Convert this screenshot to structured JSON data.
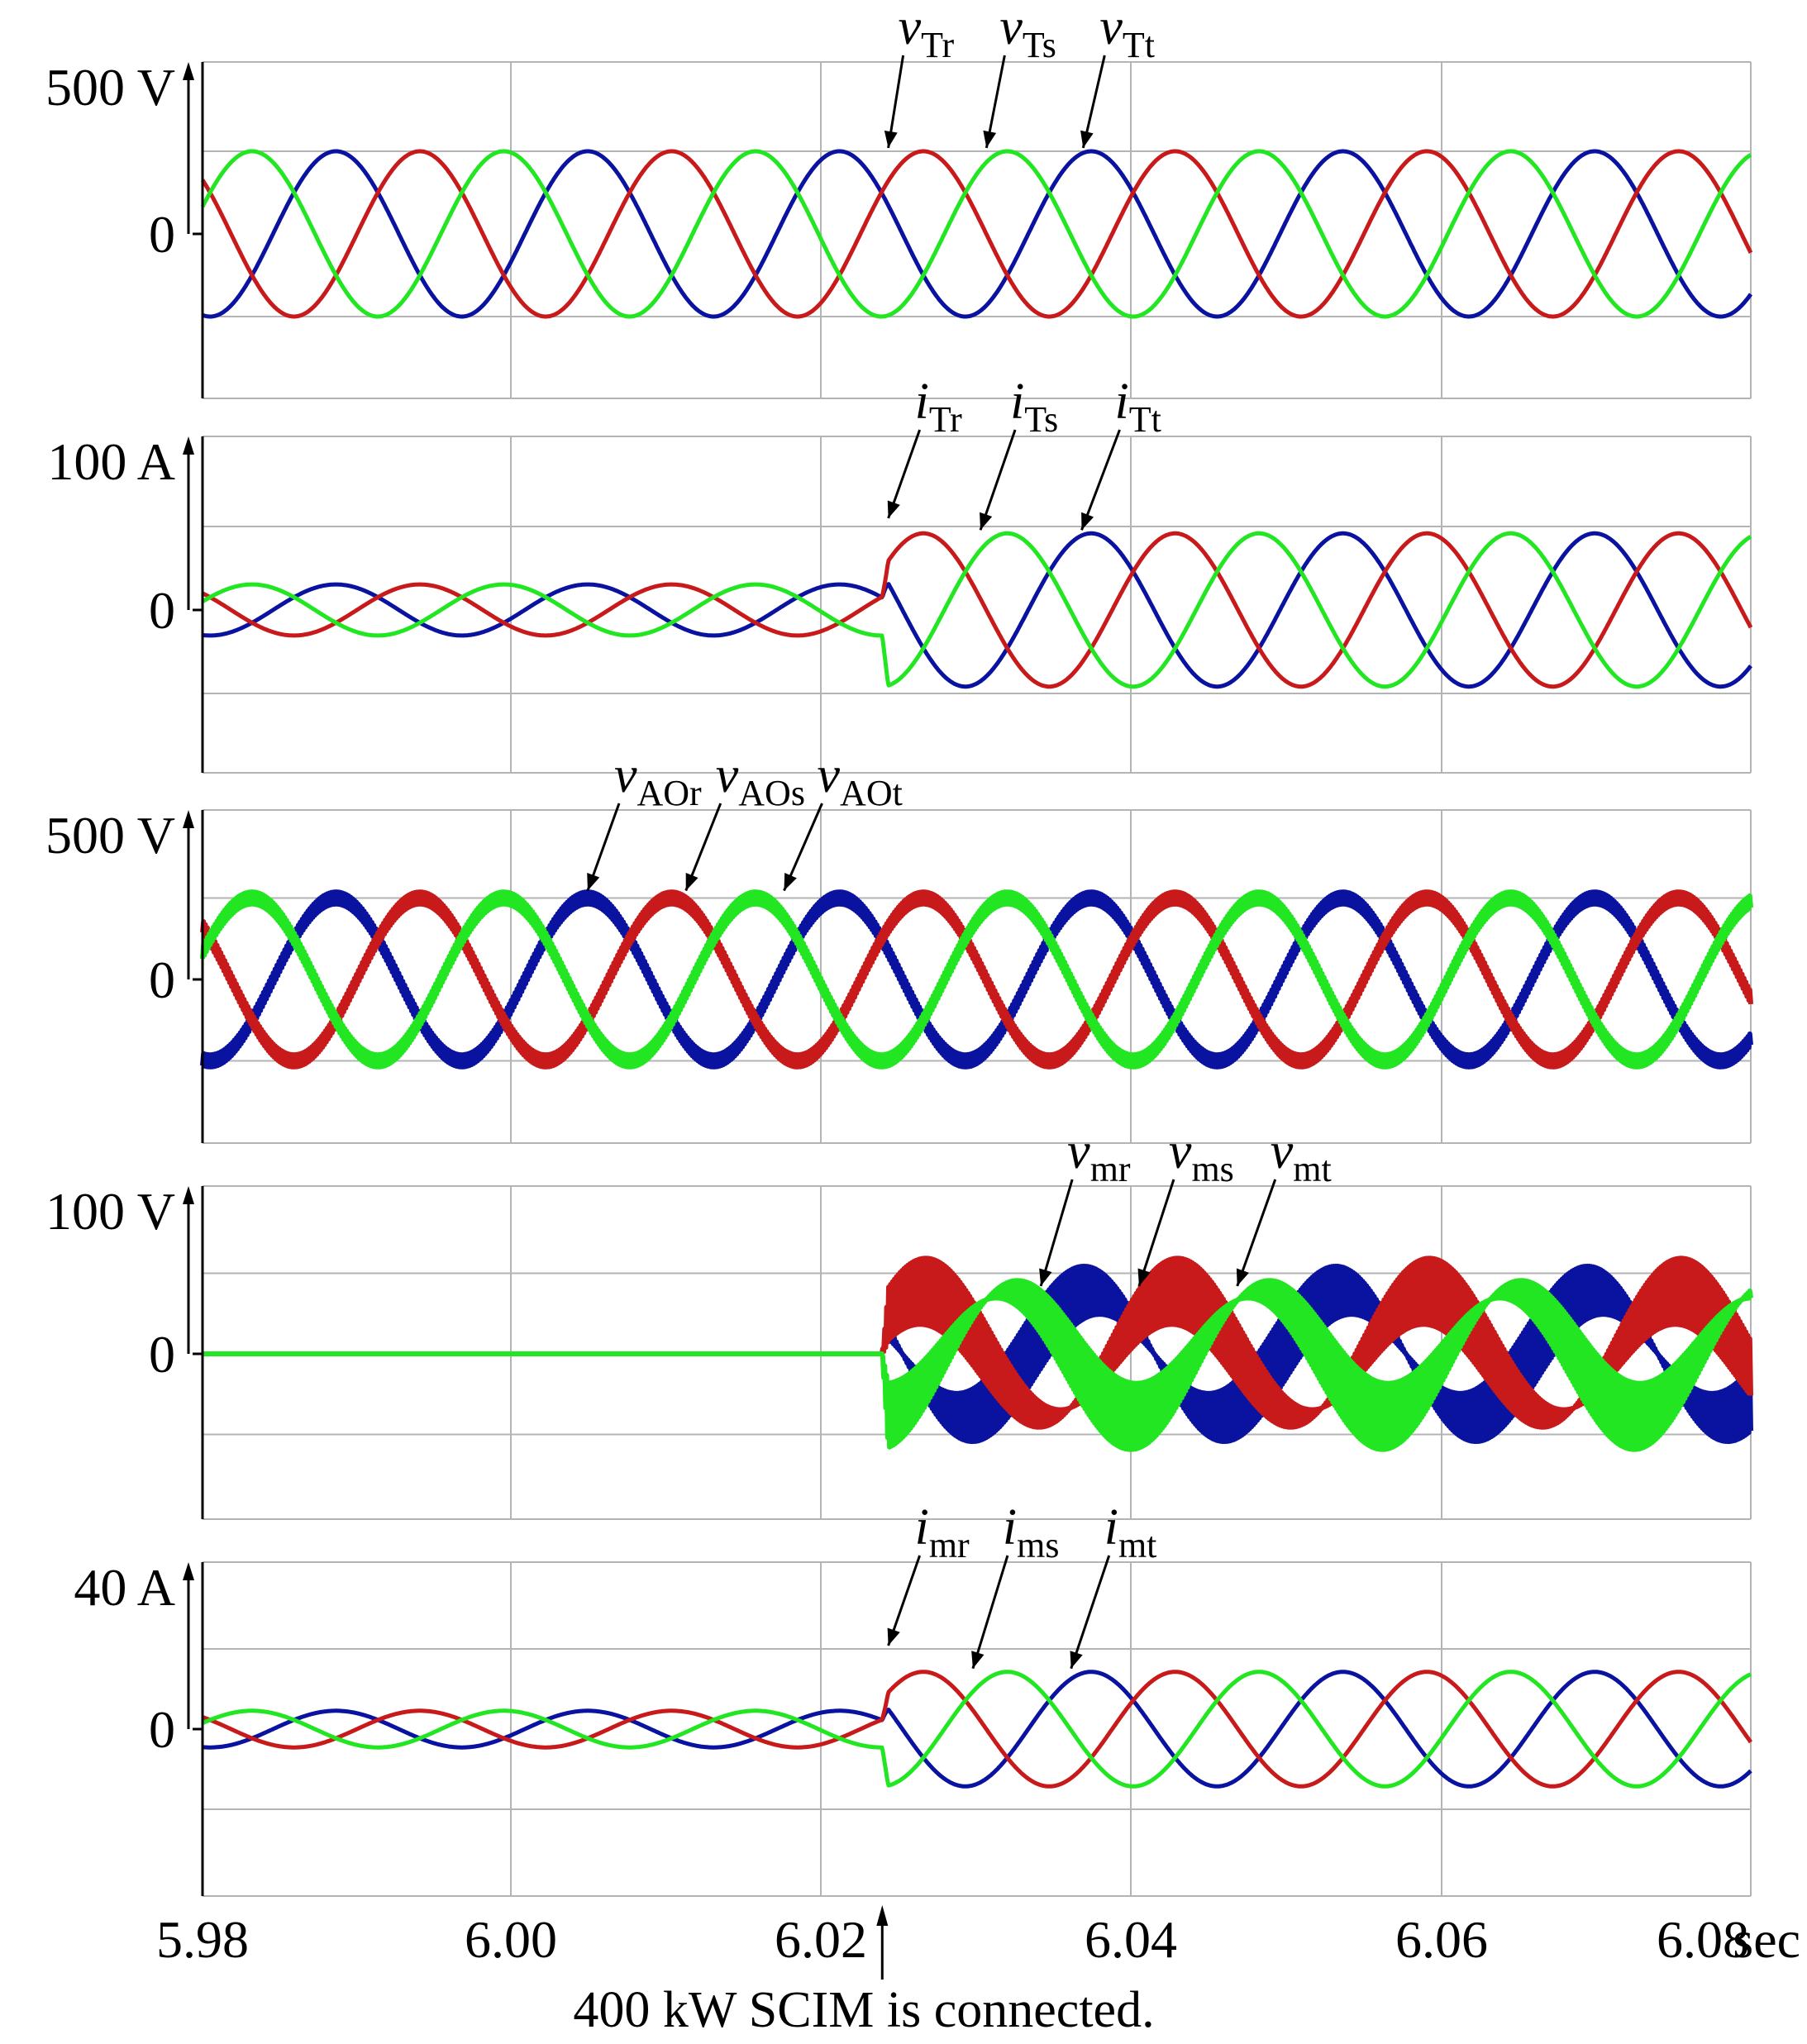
{
  "figure": {
    "x_unit": "sec",
    "xlim": [
      5.98,
      6.0825
    ],
    "x_ticks": [
      "5.98",
      "6.00",
      "6.02",
      "6.04",
      "6.06",
      "6.08"
    ],
    "event": {
      "time": 6.025,
      "text": "400 kW SCIM is connected."
    },
    "colors": {
      "r": "#0a12a0",
      "s": "#c81a1a",
      "t": "#22e622",
      "grid": "#b4b4b4",
      "axis": "#000000"
    }
  },
  "chart_data": [
    {
      "type": "line",
      "panel": "grid-voltage",
      "ylabel": "500 V",
      "ylim": [
        -600,
        800
      ],
      "y_ticks": [
        "0"
      ],
      "series": [
        {
          "name": "vTr",
          "phase": "r",
          "amplitude": [
            [
              5.98,
              400
            ],
            [
              6.0825,
              400
            ]
          ]
        },
        {
          "name": "vTs",
          "phase": "s",
          "amplitude": [
            [
              5.98,
              400
            ],
            [
              6.0825,
              400
            ]
          ]
        },
        {
          "name": "vTt",
          "phase": "t",
          "amplitude": [
            [
              5.98,
              400
            ],
            [
              6.0825,
              400
            ]
          ]
        }
      ],
      "annotations": [
        {
          "main": "v",
          "sub": "Tr",
          "x": 6.0254,
          "y": 400
        },
        {
          "main": "v",
          "sub": "Ts",
          "x": 6.0319,
          "y": 400
        },
        {
          "main": "v",
          "sub": "Tt",
          "x": 6.0383,
          "y": 400
        }
      ]
    },
    {
      "type": "line",
      "panel": "grid-current",
      "ylabel": "100 A",
      "ylim": [
        -120,
        170
      ],
      "y_ticks": [
        "0"
      ],
      "series": [
        {
          "name": "iTr",
          "phase": "r",
          "amplitude": [
            [
              5.98,
              26
            ],
            [
              6.025,
              26
            ],
            [
              6.0254,
              78
            ],
            [
              6.0825,
              78
            ]
          ]
        },
        {
          "name": "iTs",
          "phase": "s",
          "amplitude": [
            [
              5.98,
              26
            ],
            [
              6.025,
              26
            ],
            [
              6.0254,
              78
            ],
            [
              6.0825,
              78
            ]
          ]
        },
        {
          "name": "iTt",
          "phase": "t",
          "amplitude": [
            [
              5.98,
              26
            ],
            [
              6.025,
              26
            ],
            [
              6.0254,
              78
            ],
            [
              6.0825,
              78
            ]
          ]
        }
      ],
      "annotations": [
        {
          "main": "i",
          "sub": "Tr",
          "x": 6.0254,
          "y": 90
        },
        {
          "main": "i",
          "sub": "Ts",
          "x": 6.0315,
          "y": 78
        },
        {
          "main": "i",
          "sub": "Tt",
          "x": 6.0382,
          "y": 78
        }
      ]
    },
    {
      "type": "line",
      "panel": "inverter-voltage",
      "ylabel": "500 V",
      "ylim": [
        -600,
        800
      ],
      "y_ticks": [
        "0"
      ],
      "series": [
        {
          "name": "vAOr",
          "phase": "r",
          "amplitude": [
            [
              5.98,
              400
            ],
            [
              6.0825,
              400
            ]
          ],
          "ripple": 30
        },
        {
          "name": "vAOs",
          "phase": "s",
          "amplitude": [
            [
              5.98,
              400
            ],
            [
              6.0825,
              400
            ]
          ],
          "ripple": 30
        },
        {
          "name": "vAOt",
          "phase": "t",
          "amplitude": [
            [
              5.98,
              400
            ],
            [
              6.0825,
              400
            ]
          ],
          "ripple": 30
        }
      ],
      "annotations": [
        {
          "main": "v",
          "sub": "AOr",
          "x": 6.0055,
          "y": 420
        },
        {
          "main": "v",
          "sub": "AOs",
          "x": 6.012,
          "y": 420
        },
        {
          "main": "v",
          "sub": "AOt",
          "x": 6.0185,
          "y": 420
        }
      ]
    },
    {
      "type": "line",
      "panel": "motor-voltage",
      "ylabel": "100 V",
      "ylim": [
        -110,
        155
      ],
      "y_ticks": [
        "0"
      ],
      "series": [
        {
          "name": "vmr",
          "phase": "r",
          "amplitude": [
            [
              5.98,
              0
            ],
            [
              6.025,
              0
            ],
            [
              6.0254,
              60
            ],
            [
              6.0825,
              60
            ]
          ]
        },
        {
          "name": "vms",
          "phase": "s",
          "amplitude": [
            [
              5.98,
              0
            ],
            [
              6.025,
              0
            ],
            [
              6.0254,
              60
            ],
            [
              6.0825,
              60
            ]
          ]
        },
        {
          "name": "vmt",
          "phase": "t",
          "amplitude": [
            [
              5.98,
              0
            ],
            [
              6.025,
              0
            ],
            [
              6.0254,
              60
            ],
            [
              6.0825,
              60
            ]
          ]
        }
      ],
      "annotations": [
        {
          "main": "v",
          "sub": "mr",
          "x": 6.0355,
          "y": 62
        },
        {
          "main": "v",
          "sub": "ms",
          "x": 6.042,
          "y": 62
        },
        {
          "main": "v",
          "sub": "mt",
          "x": 6.0485,
          "y": 62
        }
      ]
    },
    {
      "type": "line",
      "panel": "motor-current",
      "ylabel": "40 A",
      "ylim": [
        -50,
        70
      ],
      "y_ticks": [
        "0"
      ],
      "series": [
        {
          "name": "imr",
          "phase": "r",
          "amplitude": [
            [
              5.98,
              8
            ],
            [
              6.025,
              8
            ],
            [
              6.0254,
              25
            ],
            [
              6.0825,
              25
            ]
          ]
        },
        {
          "name": "ims",
          "phase": "s",
          "amplitude": [
            [
              5.98,
              8
            ],
            [
              6.025,
              8
            ],
            [
              6.0254,
              25
            ],
            [
              6.0825,
              25
            ]
          ]
        },
        {
          "name": "imt",
          "phase": "t",
          "amplitude": [
            [
              5.98,
              8
            ],
            [
              6.025,
              8
            ],
            [
              6.0254,
              25
            ],
            [
              6.0825,
              25
            ]
          ]
        }
      ],
      "annotations": [
        {
          "main": "i",
          "sub": "mr",
          "x": 6.0254,
          "y": 35
        },
        {
          "main": "i",
          "sub": "ms",
          "x": 6.031,
          "y": 25
        },
        {
          "main": "i",
          "sub": "mt",
          "x": 6.0375,
          "y": 25
        }
      ]
    }
  ]
}
